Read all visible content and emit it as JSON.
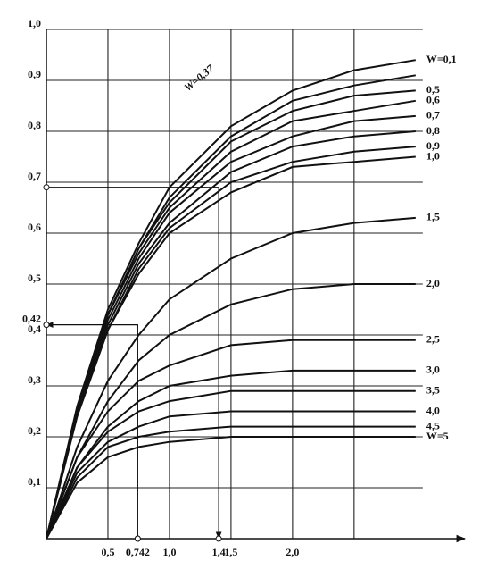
{
  "chart_data": {
    "type": "line",
    "x": [
      0,
      0.25,
      0.5,
      0.75,
      1.0,
      1.5,
      2.0,
      2.5,
      3.0
    ],
    "series": [
      {
        "name": "W=0,1",
        "color": "#111111",
        "values": [
          0,
          0.26,
          0.45,
          0.58,
          0.69,
          0.81,
          0.88,
          0.92,
          0.94
        ]
      },
      {
        "name": "0,5",
        "color": "#111111",
        "values": [
          0,
          0.25,
          0.44,
          0.57,
          0.66,
          0.78,
          0.84,
          0.87,
          0.88
        ]
      },
      {
        "name": "0,6",
        "color": "#111111",
        "values": [
          0,
          0.25,
          0.44,
          0.56,
          0.65,
          0.76,
          0.82,
          0.84,
          0.86
        ]
      },
      {
        "name": "0,7",
        "color": "#111111",
        "values": [
          0,
          0.25,
          0.43,
          0.55,
          0.64,
          0.74,
          0.79,
          0.82,
          0.83
        ]
      },
      {
        "name": "0,8",
        "color": "#111111",
        "values": [
          0,
          0.25,
          0.42,
          0.54,
          0.62,
          0.72,
          0.77,
          0.79,
          0.8
        ]
      },
      {
        "name": "0,9",
        "color": "#111111",
        "values": [
          0,
          0.25,
          0.41,
          0.53,
          0.61,
          0.7,
          0.74,
          0.76,
          0.77
        ]
      },
      {
        "name": "1,0",
        "color": "#111111",
        "values": [
          0,
          0.24,
          0.41,
          0.52,
          0.6,
          0.68,
          0.73,
          0.74,
          0.75
        ]
      },
      {
        "name": "1,5",
        "color": "#111111",
        "values": [
          0,
          0.18,
          0.31,
          0.4,
          0.47,
          0.55,
          0.6,
          0.62,
          0.63
        ]
      },
      {
        "name": "2,0",
        "color": "#111111",
        "values": [
          0,
          0.16,
          0.27,
          0.35,
          0.4,
          0.46,
          0.49,
          0.5,
          0.5
        ]
      },
      {
        "name": "2,5",
        "color": "#111111",
        "values": [
          0,
          0.16,
          0.25,
          0.31,
          0.34,
          0.38,
          0.39,
          0.39,
          0.39
        ]
      },
      {
        "name": "3,0",
        "color": "#111111",
        "values": [
          0,
          0.14,
          0.22,
          0.27,
          0.3,
          0.32,
          0.33,
          0.33,
          0.33
        ]
      },
      {
        "name": "3,5",
        "color": "#111111",
        "values": [
          0,
          0.14,
          0.21,
          0.25,
          0.27,
          0.29,
          0.29,
          0.29,
          0.29
        ]
      },
      {
        "name": "4,0",
        "color": "#111111",
        "values": [
          0,
          0.13,
          0.19,
          0.22,
          0.24,
          0.25,
          0.25,
          0.25,
          0.25
        ]
      },
      {
        "name": "4,5",
        "color": "#111111",
        "values": [
          0,
          0.12,
          0.18,
          0.2,
          0.21,
          0.22,
          0.22,
          0.22,
          0.22
        ]
      },
      {
        "name": "W=5",
        "color": "#111111",
        "values": [
          0,
          0.11,
          0.16,
          0.18,
          0.19,
          0.2,
          0.2,
          0.2,
          0.2
        ]
      },
      {
        "name": "W=0,37",
        "color": "#111111",
        "values": [
          0,
          0.25,
          0.44,
          0.57,
          0.67,
          0.79,
          0.86,
          0.89,
          0.91
        ]
      }
    ],
    "xlim": [
      0,
      3.4
    ],
    "ylim": [
      0,
      1.0
    ],
    "xticks": [
      {
        "value": 0.5,
        "label": "0,5"
      },
      {
        "value": 1.0,
        "label": "1,0"
      },
      {
        "value": 1.5,
        "label": "1,5"
      },
      {
        "value": 2.0,
        "label": "2,0"
      }
    ],
    "xgrid": [
      0.5,
      1.0,
      1.5,
      2.0,
      2.5
    ],
    "yticks": [
      {
        "value": 0.1,
        "label": "0,1"
      },
      {
        "value": 0.2,
        "label": "0,2"
      },
      {
        "value": 0.3,
        "label": "0,3"
      },
      {
        "value": 0.4,
        "label": "0,4"
      },
      {
        "value": 0.5,
        "label": "0,5"
      },
      {
        "value": 0.6,
        "label": "0,6"
      },
      {
        "value": 0.7,
        "label": "0,7"
      },
      {
        "value": 0.8,
        "label": "0,8"
      },
      {
        "value": 0.9,
        "label": "0,9"
      },
      {
        "value": 1.0,
        "label": "1,0"
      }
    ],
    "grid": true,
    "guides": [
      {
        "points": [
          [
            0,
            0.69
          ],
          [
            1.4,
            0.69
          ],
          [
            1.4,
            0
          ]
        ]
      },
      {
        "points": [
          [
            0.742,
            0
          ],
          [
            0.742,
            0.42
          ],
          [
            0,
            0.42
          ]
        ]
      }
    ],
    "annotations": [
      {
        "text": "0,42",
        "x": 0,
        "y": 0.42
      },
      {
        "text": "0,742",
        "x": 0.742,
        "y": 0
      },
      {
        "text": "1,4",
        "x": 1.4,
        "y": 0
      }
    ]
  }
}
